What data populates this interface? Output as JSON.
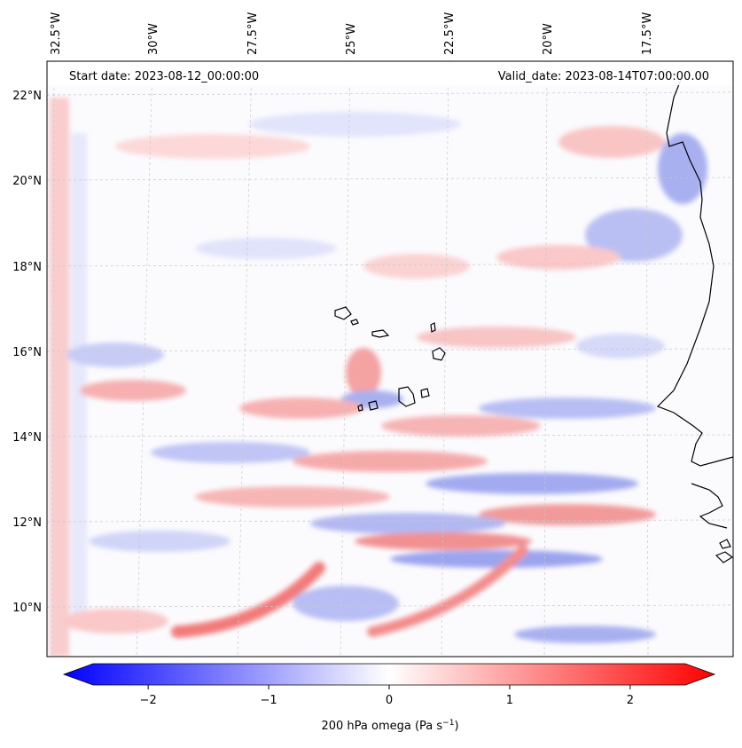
{
  "map": {
    "start_label": "Start date: 2023-08-12_00:00:00",
    "valid_label": "Valid_date: 2023-08-14T07:00:00.00",
    "lon_labels": [
      "32.5°W",
      "30°W",
      "27.5°W",
      "25°W",
      "22.5°W",
      "20°W",
      "17.5°W"
    ],
    "lat_labels": [
      "22°N",
      "20°N",
      "18°N",
      "16°N",
      "14°N",
      "12°N",
      "10°N"
    ]
  },
  "colorbar": {
    "label": "200 hPa omega (Pa s",
    "label_sup": "−1",
    "label_end": ")",
    "min": -2.7,
    "max": 2.7,
    "ticks": [
      {
        "value": -2,
        "label": "−2"
      },
      {
        "value": -1,
        "label": "−1"
      },
      {
        "value": 0,
        "label": "0"
      },
      {
        "value": 1,
        "label": "1"
      },
      {
        "value": 2,
        "label": "2"
      }
    ],
    "color_low": "#0000ff",
    "color_mid": "#ffffff",
    "color_high": "#ff0000"
  },
  "colors": {
    "positive_omega": "#ff0000",
    "negative_omega": "#0000ff",
    "coastline": "#000000",
    "gridline": "#bbbbbb"
  }
}
